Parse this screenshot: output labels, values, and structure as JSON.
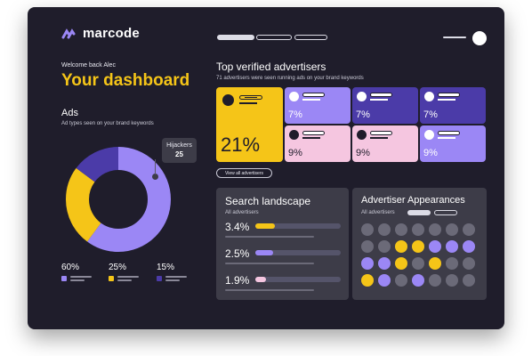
{
  "app": {
    "logo_text": "marcode"
  },
  "header": {
    "welcome": "Welcome back Alec",
    "title": "Your dashboard"
  },
  "colors": {
    "yellow": "#f5c518",
    "purple": "#9b87f5",
    "deep_purple": "#4b3ba8",
    "pink": "#f5c6e0",
    "frame_bg": "#1f1d2b",
    "panel_bg": "#3d3c48"
  },
  "ads": {
    "heading": "Ads",
    "subtitle": "Ad types seen on your brand keywords",
    "tooltip": {
      "label": "Hijackers",
      "value": "25"
    },
    "donut": [
      {
        "value": 60,
        "color": "#9b87f5"
      },
      {
        "value": 25,
        "color": "#f5c518"
      },
      {
        "value": 15,
        "color": "#4b3ba8"
      }
    ],
    "legend": [
      {
        "value": "60%",
        "color": "#9b87f5"
      },
      {
        "value": "25%",
        "color": "#f5c518"
      },
      {
        "value": "15%",
        "color": "#4b3ba8"
      }
    ]
  },
  "advertisers": {
    "heading": "Top verified advertisers",
    "subtitle": "71 advertisers were seen running ads on your brand keywords",
    "big_card": {
      "value": "21%",
      "color": "#f5c518"
    },
    "cards": [
      {
        "value": "7%",
        "color": "#9b87f5",
        "text_color": "#ffffff"
      },
      {
        "value": "7%",
        "color": "#4b3ba8",
        "text_color": "#ffffff"
      },
      {
        "value": "7%",
        "color": "#4b3ba8",
        "text_color": "#ffffff"
      },
      {
        "value": "9%",
        "color": "#f5c6e0",
        "text_color": "#1f1d2b"
      },
      {
        "value": "9%",
        "color": "#f5c6e0",
        "text_color": "#1f1d2b"
      },
      {
        "value": "9%",
        "color": "#9b87f5",
        "text_color": "#ffffff"
      }
    ],
    "view_all": "View all advertisers"
  },
  "search": {
    "heading": "Search landscape",
    "subtitle": "All advertisers",
    "rows": [
      {
        "value": "3.4%",
        "color": "#f5c518"
      },
      {
        "value": "2.5%",
        "color": "#9b87f5"
      },
      {
        "value": "1.9%",
        "color": "#f5c6e0"
      }
    ]
  },
  "appearances": {
    "heading": "Advertiser Appearances",
    "subtitle": "All advertisers",
    "grid": [
      [
        "#6b6a78",
        "#6b6a78",
        "#6b6a78",
        "#6b6a78",
        "#6b6a78",
        "#6b6a78",
        "#6b6a78"
      ],
      [
        "#6b6a78",
        "#6b6a78",
        "#f5c518",
        "#f5c518",
        "#9b87f5",
        "#9b87f5",
        "#9b87f5"
      ],
      [
        "#9b87f5",
        "#9b87f5",
        "#f5c518",
        "#6b6a78",
        "#f5c518",
        "#6b6a78",
        "#6b6a78"
      ],
      [
        "#f5c518",
        "#9b87f5",
        "#6b6a78",
        "#9b87f5",
        "#6b6a78",
        "#6b6a78",
        "#6b6a78"
      ]
    ]
  }
}
